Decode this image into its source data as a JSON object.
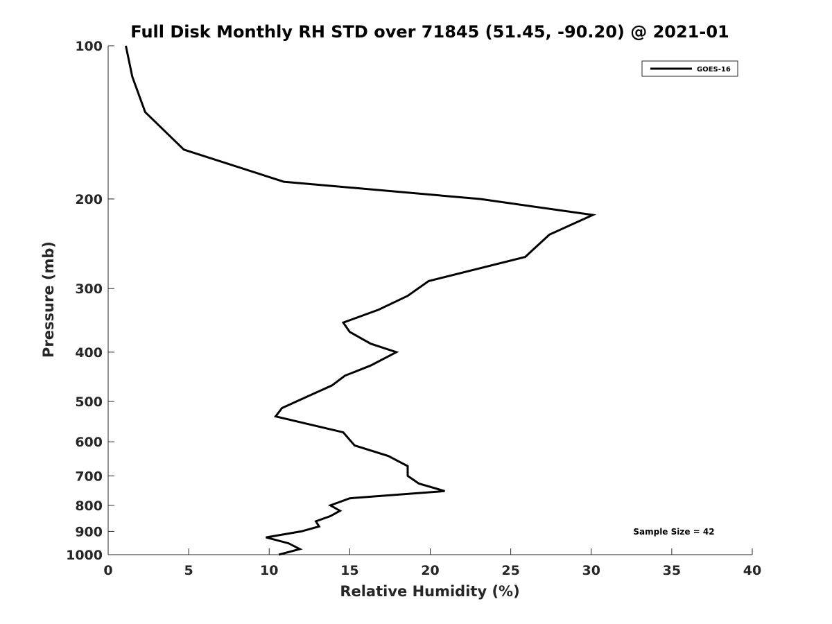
{
  "chart_data": {
    "type": "line",
    "title": "Full Disk Monthly RH STD over 71845 (51.45, -90.20) @ 2021-01",
    "xlabel": "Relative Humidity (%)",
    "ylabel": "Pressure (mb)",
    "xlim": [
      0,
      40
    ],
    "ylim": [
      100,
      1000
    ],
    "y_scale": "log",
    "y_reversed": true,
    "grid": false,
    "legend_position": "top-right",
    "x_ticks": [
      "0",
      "5",
      "10",
      "15",
      "20",
      "25",
      "30",
      "35",
      "40"
    ],
    "y_ticks": [
      "100",
      "200",
      "300",
      "400",
      "500",
      "600",
      "700",
      "800",
      "900",
      "1000"
    ],
    "annotation": "Sample Size = 42",
    "series": [
      {
        "name": "GOES-16",
        "color": "#000000",
        "x": [
          1.1,
          1.5,
          2.3,
          4.7,
          10.9,
          23.1,
          30.1,
          27.4,
          25.9,
          19.9,
          18.6,
          16.8,
          14.6,
          15.0,
          16.3,
          17.9,
          16.3,
          14.7,
          13.9,
          12.3,
          10.8,
          10.4,
          14.6,
          15.3,
          17.4,
          18.6,
          18.6,
          19.3,
          20.9,
          15.0,
          13.8,
          14.4,
          13.8,
          12.9,
          13.1,
          12.0,
          9.8,
          11.2,
          11.9,
          10.6
        ],
        "y": [
          100,
          115,
          135,
          160,
          185,
          200,
          215,
          235,
          260,
          290,
          310,
          330,
          350,
          365,
          385,
          400,
          425,
          445,
          465,
          490,
          515,
          535,
          575,
          610,
          640,
          670,
          700,
          725,
          750,
          775,
          800,
          820,
          840,
          860,
          880,
          900,
          925,
          950,
          975,
          1000
        ]
      }
    ]
  }
}
